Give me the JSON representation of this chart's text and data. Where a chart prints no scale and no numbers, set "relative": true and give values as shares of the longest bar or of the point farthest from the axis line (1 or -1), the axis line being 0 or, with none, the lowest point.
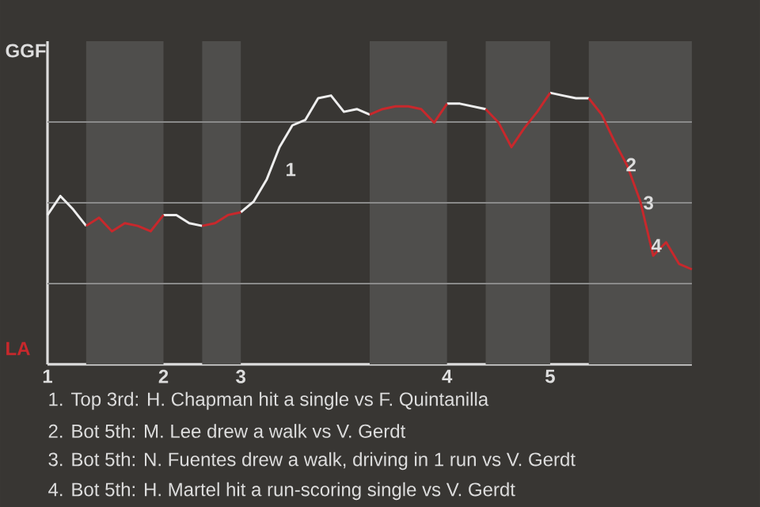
{
  "chart_data": {
    "type": "line",
    "relative": true,
    "categories": [
      "1",
      null,
      null,
      null,
      null,
      null,
      null,
      null,
      null,
      "2",
      null,
      null,
      null,
      null,
      null,
      "3",
      null,
      null,
      null,
      null,
      null,
      null,
      null,
      null,
      null,
      null,
      null,
      null,
      null,
      null,
      null,
      "4",
      null,
      null,
      null,
      null,
      null,
      null,
      null,
      "5",
      null,
      null,
      null,
      null,
      null,
      null,
      null,
      null,
      null,
      null,
      null
    ],
    "series": [
      {
        "color": "#eeeeee",
        "values": [
          0.55,
          0.62,
          0.57,
          0.51,
          null,
          null,
          null,
          null,
          null,
          0.55,
          0.55,
          0.52,
          0.51,
          null,
          null,
          0.56,
          0.6,
          0.68,
          0.8,
          0.88,
          0.9,
          0.98,
          0.99,
          0.93,
          0.94,
          0.92,
          null,
          null,
          null,
          null,
          null,
          0.96,
          0.96,
          0.95,
          0.94,
          null,
          null,
          null,
          null,
          1,
          0.99,
          0.98,
          0.98,
          null,
          null,
          null,
          null,
          null,
          null,
          null,
          null
        ]
      },
      {
        "color": "#c8282c",
        "values": [
          null,
          null,
          null,
          0.51,
          0.54,
          0.49,
          0.52,
          0.51,
          0.49,
          0.55,
          null,
          null,
          0.51,
          0.52,
          0.55,
          0.56,
          null,
          null,
          null,
          null,
          null,
          null,
          null,
          null,
          null,
          0.92,
          0.94,
          0.95,
          0.95,
          0.94,
          0.89,
          0.96,
          null,
          null,
          0.94,
          0.89,
          0.8,
          0.87,
          0.93,
          1,
          null,
          null,
          0.98,
          0.92,
          0.82,
          0.73,
          0.6,
          0.4,
          0.45,
          0.37,
          0.35
        ]
      }
    ],
    "grid": "y",
    "line_style": "solid",
    "annotations": [
      "GGF",
      "LA",
      "1",
      "2",
      "3",
      "4",
      "1. Top 3rd: H. Chapman hit a single vs F. Quintanilla",
      "2. Bot 5th: M. Lee drew a walk vs V. Gerdt",
      "3. Bot 5th: N. Fuentes drew a walk, driving in 1 run vs V. Gerdt",
      "4. Bot 5th: H. Martel hit a run-scoring single vs V. Gerdt"
    ]
  }
}
